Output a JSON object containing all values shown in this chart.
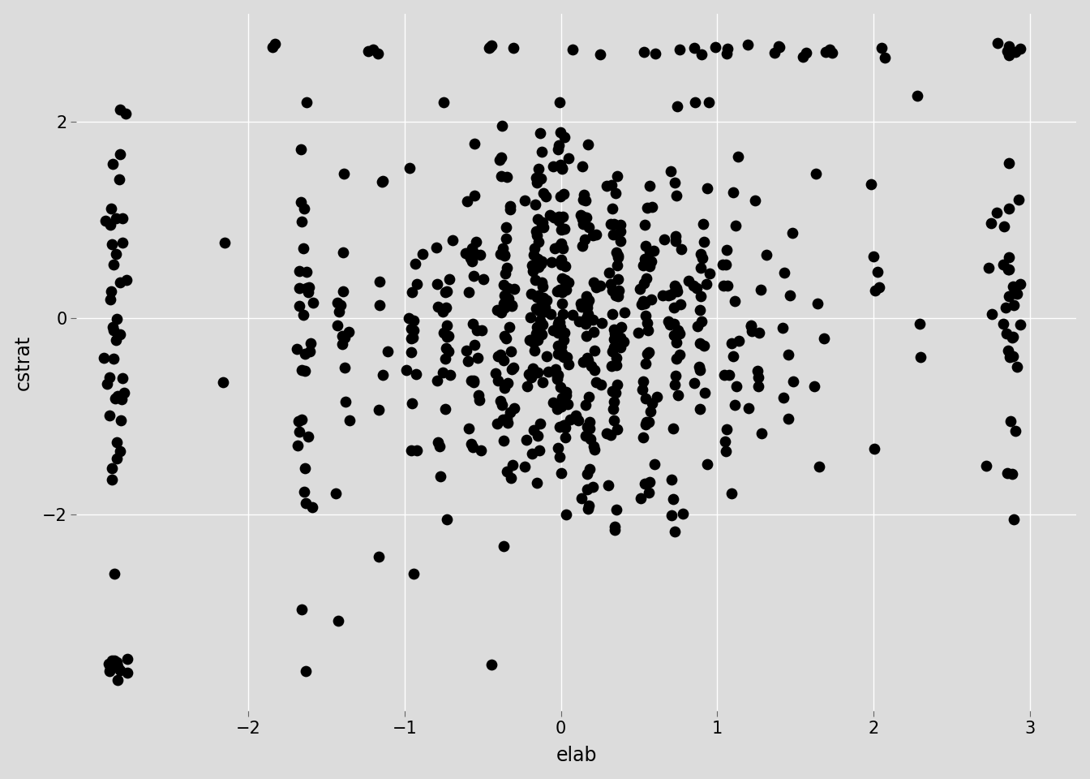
{
  "xlabel": "elab",
  "ylabel": "cstrat",
  "xlim": [
    -3.1,
    3.3
  ],
  "ylim": [
    -4.0,
    3.1
  ],
  "xticks": [
    -2,
    -1,
    0,
    1,
    2,
    3
  ],
  "yticks": [
    -2,
    0,
    2
  ],
  "bg_color": "#DCDCDC",
  "panel_bg": "#DCDCDC",
  "grid_color": "#FFFFFF",
  "point_color": "#000000",
  "point_size": 28,
  "point_alpha": 1.0,
  "xlabel_fontsize": 17,
  "ylabel_fontsize": 17,
  "tick_fontsize": 15
}
